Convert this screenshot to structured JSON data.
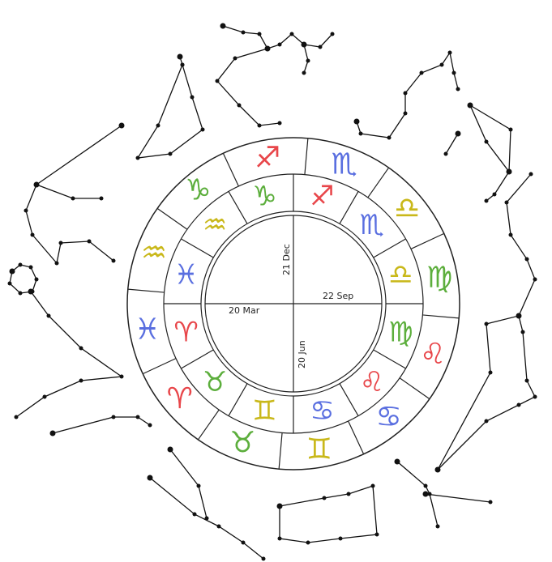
{
  "wheel": {
    "outer_signs": [
      {
        "symbol": "♐",
        "color": "#e8464a"
      },
      {
        "symbol": "♏",
        "color": "#5a6fe0"
      },
      {
        "symbol": "♎",
        "color": "#c9b81a"
      },
      {
        "symbol": "♍",
        "color": "#5cae3c"
      },
      {
        "symbol": "♌",
        "color": "#e8464a"
      },
      {
        "symbol": "♋",
        "color": "#5a6fe0"
      },
      {
        "symbol": "♊",
        "color": "#c9b81a"
      },
      {
        "symbol": "♉",
        "color": "#5cae3c"
      },
      {
        "symbol": "♈",
        "color": "#e8464a"
      },
      {
        "symbol": "♓",
        "color": "#5a6fe0"
      },
      {
        "symbol": "♒",
        "color": "#c9b81a"
      },
      {
        "symbol": "♑",
        "color": "#5cae3c"
      }
    ],
    "inner_signs": [
      {
        "symbol": "♐",
        "color": "#e8464a"
      },
      {
        "symbol": "♏",
        "color": "#5a6fe0"
      },
      {
        "symbol": "♎",
        "color": "#c9b81a"
      },
      {
        "symbol": "♍",
        "color": "#5cae3c"
      },
      {
        "symbol": "♌",
        "color": "#e8464a"
      },
      {
        "symbol": "♋",
        "color": "#5a6fe0"
      },
      {
        "symbol": "♊",
        "color": "#c9b81a"
      },
      {
        "symbol": "♉",
        "color": "#5cae3c"
      },
      {
        "symbol": "♈",
        "color": "#e8464a"
      },
      {
        "symbol": "♓",
        "color": "#5a6fe0"
      },
      {
        "symbol": "♒",
        "color": "#c9b81a"
      },
      {
        "symbol": "♑",
        "color": "#5cae3c"
      }
    ],
    "date_labels": [
      "21 Dec",
      "22 Sep",
      "20 Mar",
      "20 Jun"
    ]
  }
}
